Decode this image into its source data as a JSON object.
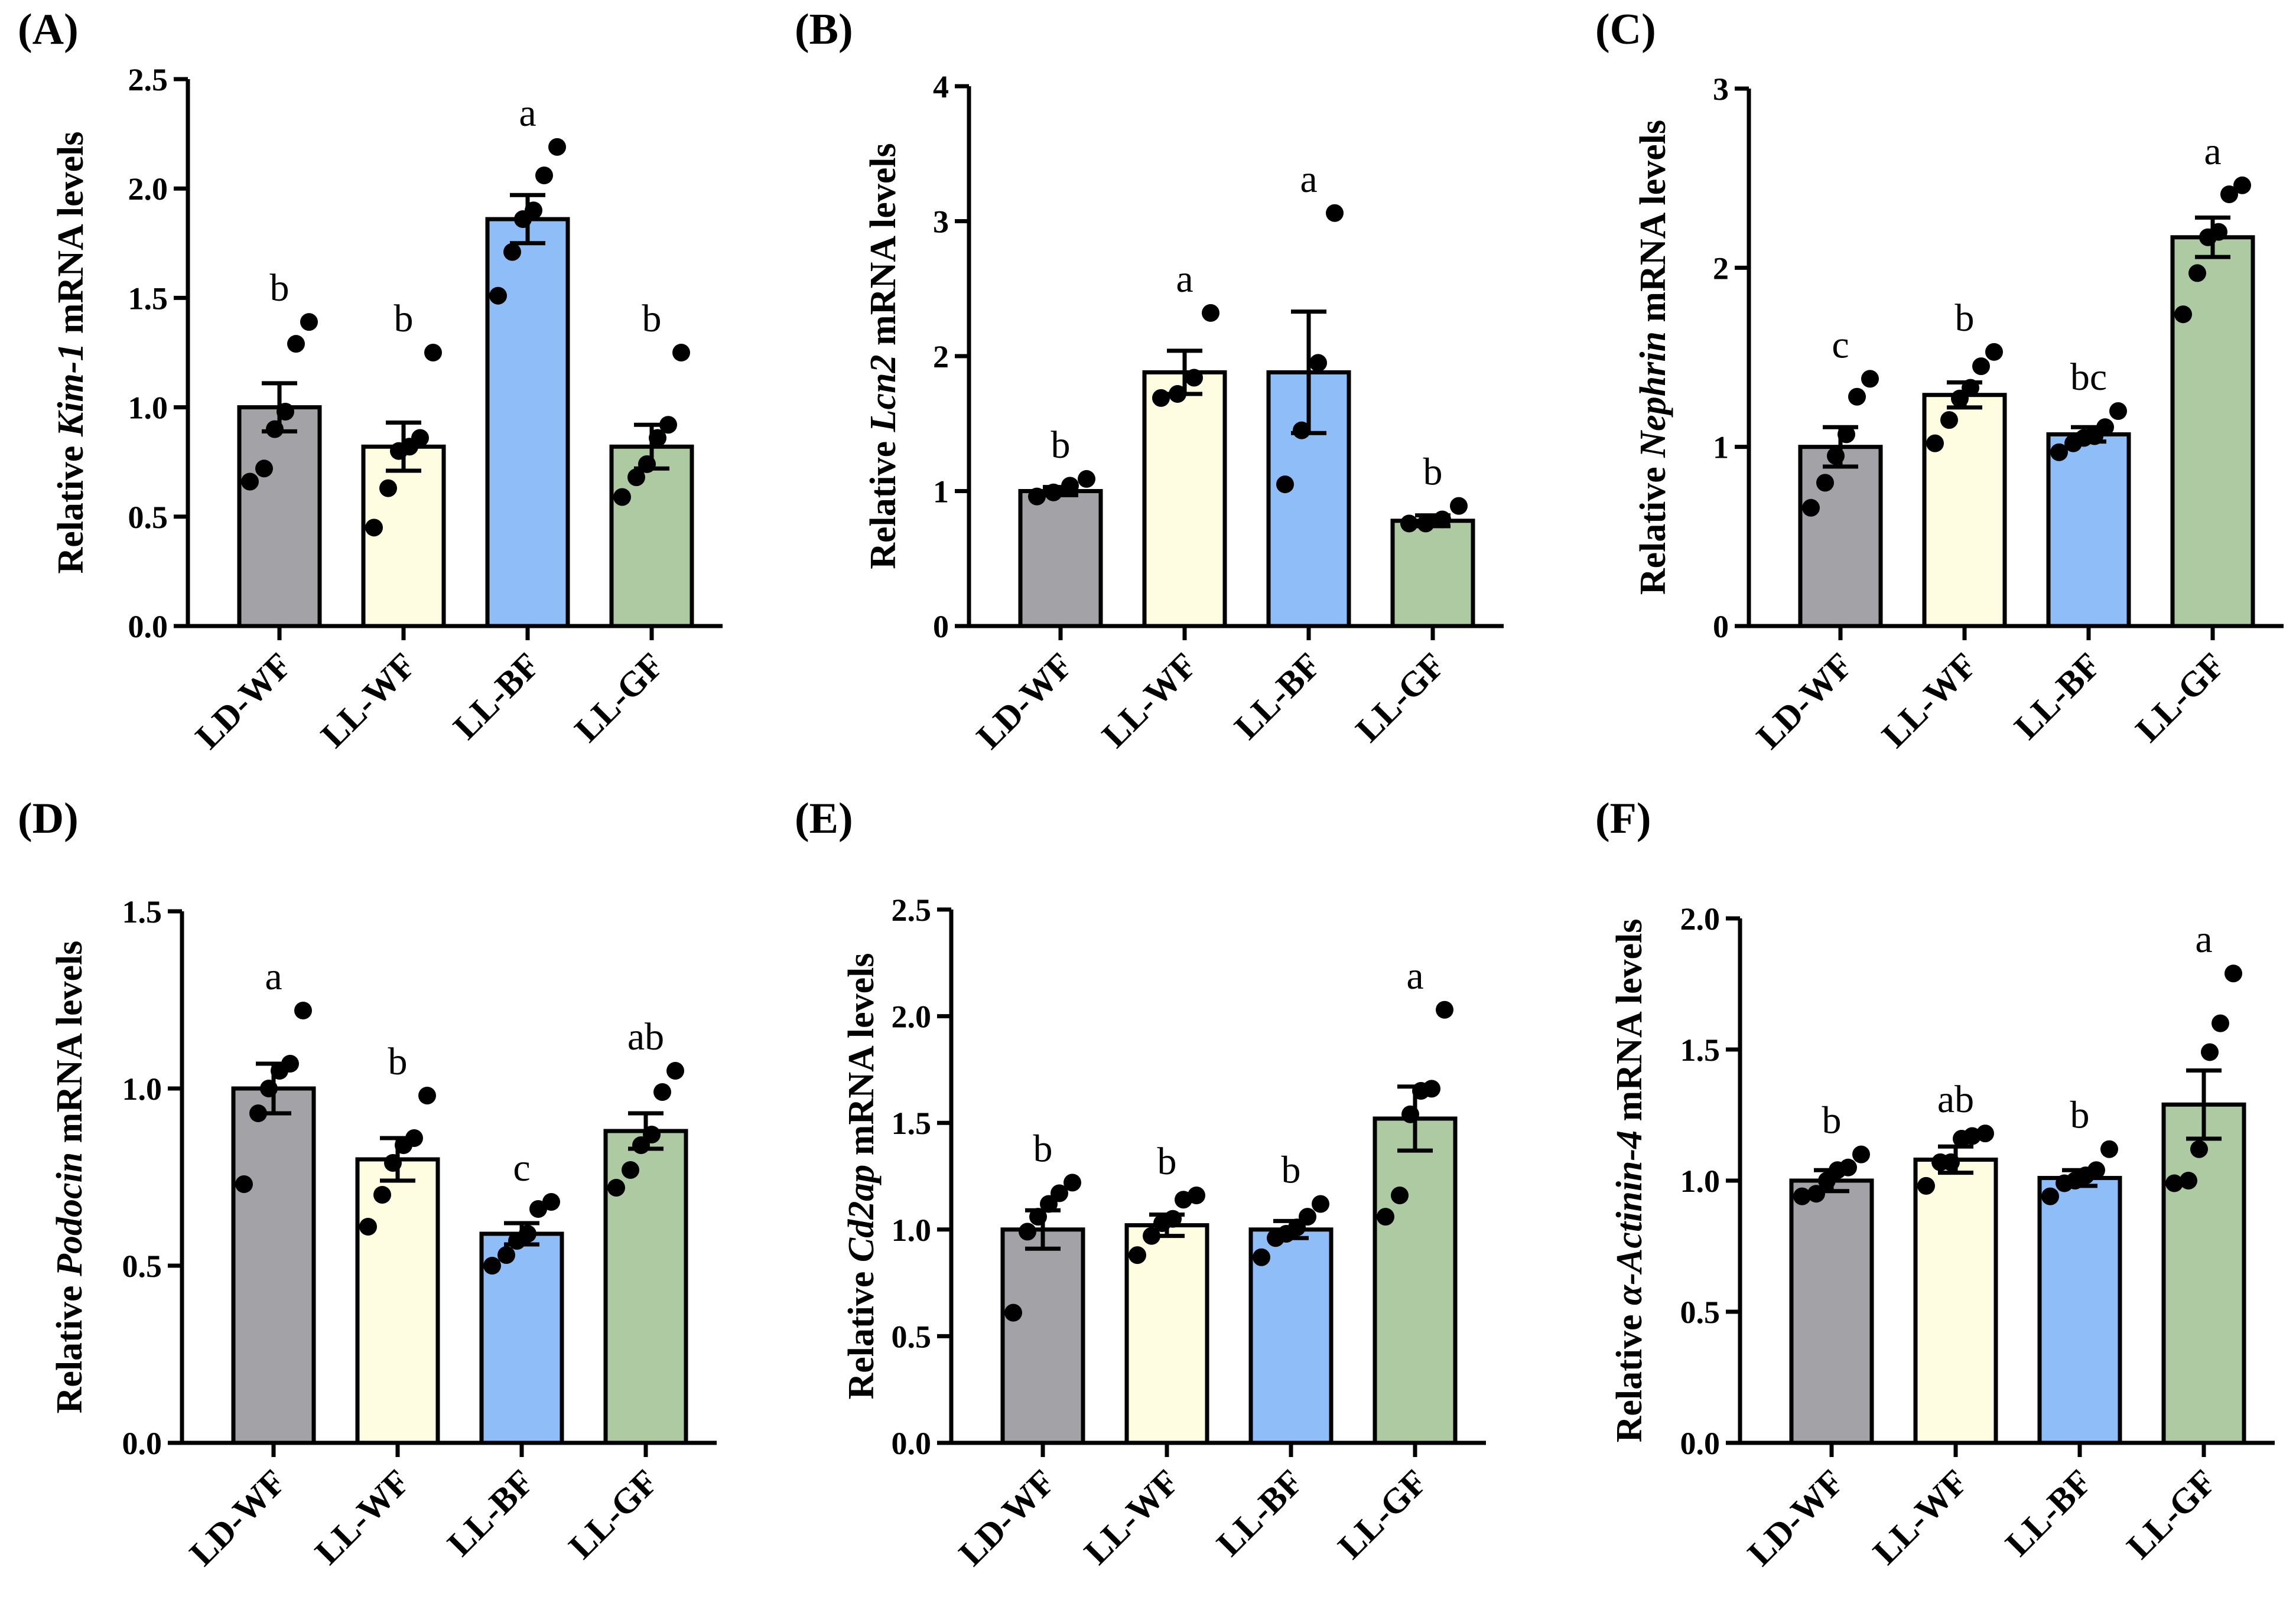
{
  "colors": {
    "LD-WF": "#a3a2a7",
    "LL-WF": "#fefde1",
    "LL-BF": "#8fbdf8",
    "LL-GF": "#aecaa3"
  },
  "chart_data": [
    {
      "panel": "(A)",
      "type": "bar",
      "ylabel_pre": "Relative ",
      "ylabel_gene": "Kim-1",
      "ylabel_post": " mRNA levels",
      "ylim": [
        0,
        2.5
      ],
      "yticks": [
        "0.0",
        "0.5",
        "1.0",
        "1.5",
        "2.0",
        "2.5"
      ],
      "yticks_values": [
        0,
        0.5,
        1.0,
        1.5,
        2.0,
        2.5
      ],
      "categories": [
        "LD-WF",
        "LL-WF",
        "LL-BF",
        "LL-GF"
      ],
      "values": [
        1.0,
        0.82,
        1.86,
        0.82
      ],
      "sem": [
        0.11,
        0.11,
        0.11,
        0.1
      ],
      "letters": [
        "b",
        "b",
        "a",
        "b"
      ],
      "points": [
        [
          0.66,
          0.72,
          0.9,
          0.98,
          1.29,
          1.39
        ],
        [
          0.45,
          0.63,
          0.8,
          0.82,
          0.86,
          1.25
        ],
        [
          1.51,
          1.71,
          1.86,
          1.9,
          2.06,
          2.19
        ],
        [
          0.59,
          0.68,
          0.74,
          0.86,
          0.92,
          1.25
        ]
      ]
    },
    {
      "panel": "(B)",
      "type": "bar",
      "ylabel_pre": "Relative ",
      "ylabel_gene": "Lcn2",
      "ylabel_post": " mRNA levels",
      "ylim": [
        0,
        4
      ],
      "yticks": [
        "0",
        "1",
        "2",
        "3",
        "4"
      ],
      "yticks_values": [
        0,
        1,
        2,
        3,
        4
      ],
      "categories": [
        "LD-WF",
        "LL-WF",
        "LL-BF",
        "LL-GF"
      ],
      "values": [
        1.0,
        1.88,
        1.88,
        0.78
      ],
      "sem": [
        0.03,
        0.16,
        0.45,
        0.04
      ],
      "letters": [
        "b",
        "a",
        "a",
        "b"
      ],
      "points": [
        [
          0.96,
          0.99,
          1.04,
          1.09
        ],
        [
          1.69,
          1.72,
          1.84,
          2.32
        ],
        [
          1.05,
          1.45,
          1.95,
          3.06
        ],
        [
          0.76,
          0.76,
          0.79,
          0.89
        ]
      ]
    },
    {
      "panel": "(C)",
      "type": "bar",
      "ylabel_pre": "Relative ",
      "ylabel_gene": "Nephrin",
      "ylabel_post": " mRNA levels",
      "ylim": [
        0,
        3
      ],
      "yticks": [
        "0",
        "1",
        "2",
        "3"
      ],
      "yticks_values": [
        0,
        1,
        2,
        3
      ],
      "categories": [
        "LD-WF",
        "LL-WF",
        "LL-BF",
        "LL-GF"
      ],
      "values": [
        1.0,
        1.29,
        1.07,
        2.17
      ],
      "sem": [
        0.11,
        0.07,
        0.04,
        0.11
      ],
      "letters": [
        "c",
        "b",
        "bc",
        "a"
      ],
      "points": [
        [
          0.66,
          0.8,
          0.95,
          1.07,
          1.28,
          1.38
        ],
        [
          1.02,
          1.15,
          1.27,
          1.33,
          1.45,
          1.53
        ],
        [
          0.97,
          1.02,
          1.05,
          1.06,
          1.11,
          1.2
        ],
        [
          1.74,
          1.97,
          2.17,
          2.2,
          2.41,
          2.46
        ]
      ]
    },
    {
      "panel": "(D)",
      "type": "bar",
      "ylabel_pre": "Relative ",
      "ylabel_gene": "Podocin",
      "ylabel_post": " mRNA levels",
      "ylim": [
        0,
        1.5
      ],
      "yticks": [
        "0.0",
        "0.5",
        "1.0",
        "1.5"
      ],
      "yticks_values": [
        0,
        0.5,
        1.0,
        1.5
      ],
      "categories": [
        "LD-WF",
        "LL-WF",
        "LL-BF",
        "LL-GF"
      ],
      "values": [
        1.0,
        0.8,
        0.59,
        0.88
      ],
      "sem": [
        0.07,
        0.06,
        0.03,
        0.05
      ],
      "letters": [
        "a",
        "b",
        "c",
        "ab"
      ],
      "points": [
        [
          0.73,
          0.93,
          1.0,
          1.05,
          1.07,
          1.22
        ],
        [
          0.61,
          0.7,
          0.79,
          0.84,
          0.86,
          0.98
        ],
        [
          0.5,
          0.53,
          0.57,
          0.59,
          0.66,
          0.68
        ],
        [
          0.72,
          0.77,
          0.84,
          0.87,
          0.99,
          1.05
        ]
      ]
    },
    {
      "panel": "(E)",
      "type": "bar",
      "ylabel_pre": "Relative ",
      "ylabel_gene": "Cd2ap",
      "ylabel_post": " mRNA levels",
      "ylim": [
        0,
        2.5
      ],
      "yticks": [
        "0.0",
        "0.5",
        "1.0",
        "1.5",
        "2.0",
        "2.5"
      ],
      "yticks_values": [
        0,
        0.5,
        1.0,
        1.5,
        2.0,
        2.5
      ],
      "categories": [
        "LD-WF",
        "LL-WF",
        "LL-BF",
        "LL-GF"
      ],
      "values": [
        1.0,
        1.02,
        1.0,
        1.52
      ],
      "sem": [
        0.09,
        0.05,
        0.04,
        0.15
      ],
      "letters": [
        "b",
        "b",
        "b",
        "a"
      ],
      "points": [
        [
          0.61,
          0.99,
          1.06,
          1.12,
          1.17,
          1.22
        ],
        [
          0.88,
          0.97,
          1.03,
          1.05,
          1.14,
          1.16
        ],
        [
          0.87,
          0.96,
          0.98,
          1.01,
          1.06,
          1.12
        ],
        [
          1.06,
          1.16,
          1.54,
          1.65,
          1.66,
          2.03
        ]
      ]
    },
    {
      "panel": "(F)",
      "type": "bar",
      "ylabel_pre": "Relative ",
      "ylabel_gene": "α-Actinin-4",
      "ylabel_post": " mRNA levels",
      "ylim": [
        0,
        2.0
      ],
      "yticks": [
        "0.0",
        "0.5",
        "1.0",
        "1.5",
        "2.0"
      ],
      "yticks_values": [
        0,
        0.5,
        1.0,
        1.5,
        2.0
      ],
      "categories": [
        "LD-WF",
        "LL-WF",
        "LL-BF",
        "LL-GF"
      ],
      "values": [
        1.0,
        1.08,
        1.01,
        1.29
      ],
      "sem": [
        0.04,
        0.05,
        0.03,
        0.13
      ],
      "letters": [
        "b",
        "ab",
        "b",
        "a"
      ],
      "points": [
        [
          0.94,
          0.95,
          1.0,
          1.04,
          1.05,
          1.1
        ],
        [
          0.98,
          1.07,
          1.07,
          1.16,
          1.17,
          1.18
        ],
        [
          0.94,
          0.99,
          1.0,
          1.02,
          1.04,
          1.12
        ],
        [
          0.99,
          1.0,
          1.12,
          1.49,
          1.6,
          1.79
        ]
      ]
    }
  ]
}
